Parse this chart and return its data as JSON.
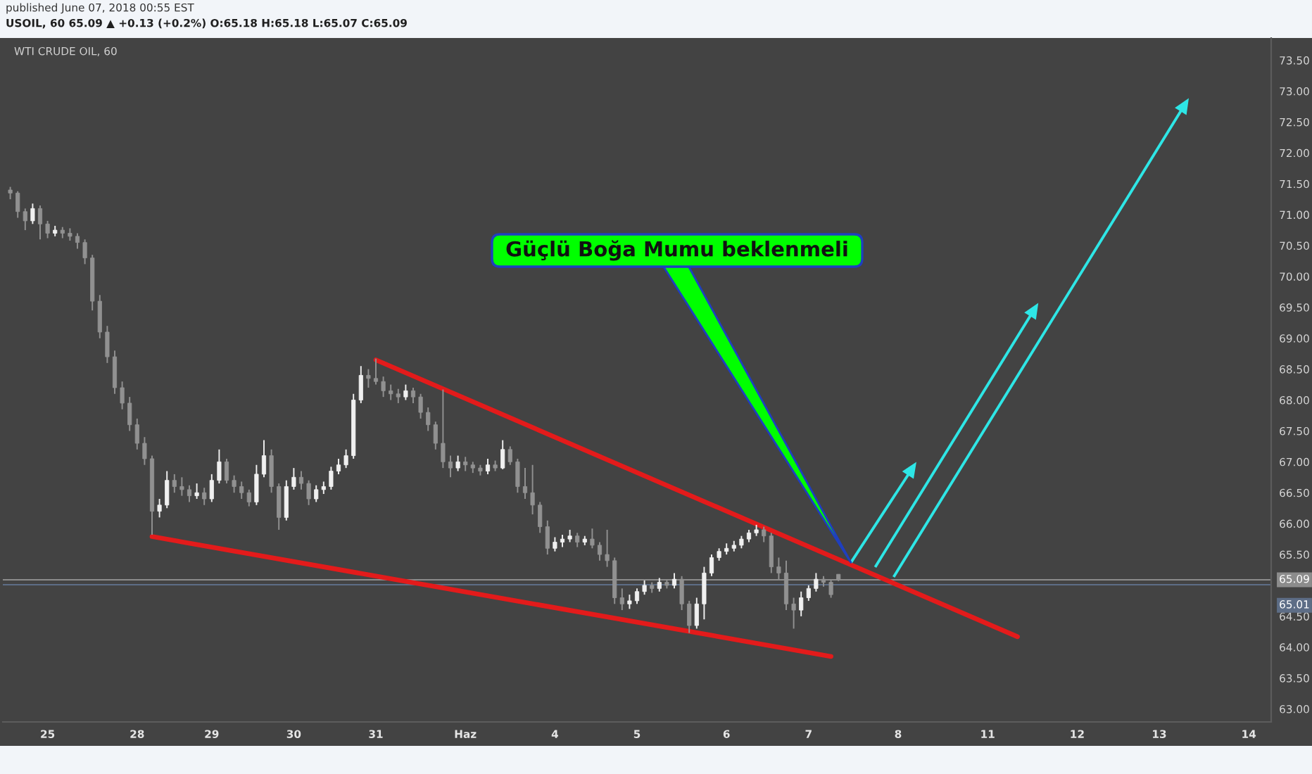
{
  "chart_data": {
    "type": "candlestick",
    "title": "WTI CRUDE OIL, 60",
    "subtitle": "USOIL, 60 65.09 ▲ +0.13 (+0.2%) O:65.18 H:65.18 L:65.07 C:65.09",
    "annotations": [
      "published June 07, 2018 00:55 EST",
      "Güçlü Boğa Mumu beklenmeli"
    ],
    "categories": [
      null,
      null,
      null,
      null,
      null,
      "25",
      null,
      null,
      null,
      null,
      null,
      null,
      null,
      null,
      null,
      null,
      null,
      "28",
      null,
      null,
      null,
      null,
      null,
      null,
      null,
      null,
      null,
      "29",
      null,
      null,
      null,
      null,
      null,
      null,
      null,
      null,
      null,
      null,
      "30",
      null,
      null,
      null,
      null,
      null,
      null,
      null,
      null,
      null,
      null,
      "31",
      null,
      null,
      null,
      null,
      null,
      null,
      null,
      null,
      null,
      null,
      null,
      "Haz",
      null,
      null,
      null,
      null,
      null,
      null,
      null,
      null,
      null,
      null,
      null,
      "4",
      null,
      null,
      null,
      null,
      null,
      null,
      null,
      null,
      null,
      null,
      "5",
      null,
      null,
      null,
      null,
      null,
      null,
      null,
      null,
      null,
      null,
      null,
      "6",
      null,
      null,
      null,
      null,
      null,
      null,
      null,
      null,
      null,
      null,
      "7",
      null,
      null,
      null,
      null,
      null,
      null,
      null,
      null,
      null,
      null,
      null,
      "8",
      null,
      null,
      null,
      null,
      null,
      null,
      null,
      null,
      null,
      null,
      null,
      "11",
      null,
      null,
      null,
      null,
      null,
      null,
      null,
      null,
      null,
      null,
      null,
      "12",
      null,
      null,
      null,
      null,
      null,
      null,
      null,
      null,
      null,
      null,
      "13",
      null,
      null,
      null,
      null,
      null,
      null,
      null,
      null,
      null,
      null,
      null,
      "14",
      null,
      null
    ],
    "ohlc": [
      [
        71.4,
        71.45,
        71.25,
        71.35
      ],
      [
        71.35,
        71.38,
        70.95,
        71.05
      ],
      [
        71.05,
        71.1,
        70.75,
        70.9
      ],
      [
        70.9,
        71.18,
        70.85,
        71.1
      ],
      [
        71.1,
        71.15,
        70.6,
        70.85
      ],
      [
        70.85,
        70.9,
        70.62,
        70.7
      ],
      [
        70.7,
        70.82,
        70.65,
        70.75
      ],
      [
        70.75,
        70.8,
        70.62,
        70.7
      ],
      [
        70.7,
        70.78,
        70.58,
        70.65
      ],
      [
        70.65,
        70.7,
        70.45,
        70.55
      ],
      [
        70.55,
        70.6,
        70.2,
        70.3
      ],
      [
        70.3,
        70.35,
        69.45,
        69.6
      ],
      [
        69.6,
        69.7,
        69.0,
        69.1
      ],
      [
        69.1,
        69.2,
        68.6,
        68.7
      ],
      [
        68.7,
        68.8,
        68.1,
        68.2
      ],
      [
        68.2,
        68.3,
        67.85,
        67.95
      ],
      [
        67.95,
        68.05,
        67.5,
        67.6
      ],
      [
        67.6,
        67.7,
        67.2,
        67.3
      ],
      [
        67.3,
        67.4,
        66.95,
        67.05
      ],
      [
        67.05,
        67.1,
        65.82,
        66.2
      ],
      [
        66.2,
        66.4,
        66.1,
        66.3
      ],
      [
        66.3,
        66.85,
        66.25,
        66.7
      ],
      [
        66.7,
        66.8,
        66.5,
        66.6
      ],
      [
        66.6,
        66.75,
        66.45,
        66.55
      ],
      [
        66.55,
        66.62,
        66.35,
        66.45
      ],
      [
        66.45,
        66.65,
        66.4,
        66.5
      ],
      [
        66.5,
        66.58,
        66.3,
        66.4
      ],
      [
        66.4,
        66.8,
        66.35,
        66.7
      ],
      [
        66.7,
        67.2,
        66.65,
        67.0
      ],
      [
        67.0,
        67.05,
        66.65,
        66.7
      ],
      [
        66.7,
        66.78,
        66.5,
        66.6
      ],
      [
        66.6,
        66.68,
        66.4,
        66.5
      ],
      [
        66.5,
        66.55,
        66.28,
        66.35
      ],
      [
        66.35,
        66.95,
        66.3,
        66.8
      ],
      [
        66.8,
        67.35,
        66.75,
        67.1
      ],
      [
        67.1,
        67.2,
        66.5,
        66.6
      ],
      [
        66.6,
        66.65,
        65.9,
        66.1
      ],
      [
        66.1,
        66.7,
        66.05,
        66.6
      ],
      [
        66.6,
        66.9,
        66.55,
        66.75
      ],
      [
        66.75,
        66.85,
        66.55,
        66.65
      ],
      [
        66.65,
        66.7,
        66.3,
        66.4
      ],
      [
        66.4,
        66.62,
        66.35,
        66.55
      ],
      [
        66.55,
        66.68,
        66.48,
        66.6
      ],
      [
        66.6,
        66.92,
        66.55,
        66.85
      ],
      [
        66.85,
        67.05,
        66.8,
        66.95
      ],
      [
        66.95,
        67.2,
        66.9,
        67.1
      ],
      [
        67.1,
        68.1,
        67.05,
        68.0
      ],
      [
        68.0,
        68.55,
        67.95,
        68.4
      ],
      [
        68.4,
        68.5,
        68.2,
        68.35
      ],
      [
        68.35,
        68.67,
        68.25,
        68.3
      ],
      [
        68.3,
        68.38,
        68.05,
        68.15
      ],
      [
        68.15,
        68.25,
        68.0,
        68.1
      ],
      [
        68.1,
        68.18,
        67.95,
        68.05
      ],
      [
        68.05,
        68.25,
        68.0,
        68.15
      ],
      [
        68.15,
        68.2,
        67.95,
        68.05
      ],
      [
        68.05,
        68.1,
        67.7,
        67.8
      ],
      [
        67.8,
        67.88,
        67.5,
        67.6
      ],
      [
        67.6,
        67.65,
        67.2,
        67.3
      ],
      [
        67.3,
        68.17,
        66.9,
        67.0
      ],
      [
        67.0,
        67.1,
        66.75,
        66.9
      ],
      [
        66.9,
        67.1,
        66.85,
        67.0
      ],
      [
        67.0,
        67.08,
        66.85,
        66.95
      ],
      [
        66.95,
        67.0,
        66.82,
        66.9
      ],
      [
        66.9,
        66.95,
        66.78,
        66.85
      ],
      [
        66.85,
        67.05,
        66.8,
        66.95
      ],
      [
        66.95,
        67.02,
        66.85,
        66.9
      ],
      [
        66.9,
        67.35,
        66.88,
        67.2
      ],
      [
        67.2,
        67.25,
        66.95,
        67.0
      ],
      [
        67.0,
        67.05,
        66.5,
        66.6
      ],
      [
        66.6,
        66.9,
        66.4,
        66.5
      ],
      [
        66.5,
        66.95,
        66.15,
        66.3
      ],
      [
        66.3,
        66.35,
        65.85,
        65.95
      ],
      [
        65.95,
        66.05,
        65.5,
        65.6
      ],
      [
        65.6,
        65.78,
        65.55,
        65.7
      ],
      [
        65.7,
        65.82,
        65.62,
        65.75
      ],
      [
        65.75,
        65.9,
        65.7,
        65.8
      ],
      [
        65.8,
        65.85,
        65.62,
        65.7
      ],
      [
        65.7,
        65.8,
        65.65,
        65.75
      ],
      [
        65.75,
        65.92,
        65.6,
        65.65
      ],
      [
        65.65,
        65.7,
        65.4,
        65.5
      ],
      [
        65.5,
        65.9,
        65.3,
        65.4
      ],
      [
        65.4,
        65.45,
        64.7,
        64.8
      ],
      [
        64.8,
        64.95,
        64.6,
        64.7
      ],
      [
        64.7,
        64.85,
        64.62,
        64.75
      ],
      [
        64.75,
        64.95,
        64.7,
        64.9
      ],
      [
        64.9,
        65.08,
        64.85,
        65.0
      ],
      [
        65.0,
        65.05,
        64.88,
        64.95
      ],
      [
        64.95,
        65.12,
        64.9,
        65.05
      ],
      [
        65.05,
        65.1,
        64.95,
        65.0
      ],
      [
        65.0,
        65.2,
        64.95,
        65.1
      ],
      [
        65.1,
        65.15,
        64.6,
        64.7
      ],
      [
        64.7,
        64.75,
        64.23,
        64.35
      ],
      [
        64.35,
        64.8,
        64.3,
        64.7
      ],
      [
        64.7,
        65.3,
        64.45,
        65.2
      ],
      [
        65.2,
        65.5,
        65.15,
        65.45
      ],
      [
        65.45,
        65.6,
        65.4,
        65.55
      ],
      [
        65.55,
        65.68,
        65.5,
        65.6
      ],
      [
        65.6,
        65.72,
        65.55,
        65.65
      ],
      [
        65.65,
        65.8,
        65.6,
        65.75
      ],
      [
        65.75,
        65.9,
        65.7,
        65.85
      ],
      [
        65.85,
        65.98,
        65.8,
        65.9
      ],
      [
        65.9,
        65.95,
        65.7,
        65.8
      ],
      [
        65.8,
        65.85,
        65.2,
        65.3
      ],
      [
        65.3,
        65.45,
        65.1,
        65.2
      ],
      [
        65.2,
        65.4,
        64.6,
        64.7
      ],
      [
        64.7,
        64.8,
        64.3,
        64.6
      ],
      [
        64.6,
        64.9,
        64.5,
        64.8
      ],
      [
        64.8,
        65.0,
        64.75,
        64.95
      ],
      [
        64.95,
        65.2,
        64.9,
        65.1
      ],
      [
        65.1,
        65.15,
        64.98,
        65.05
      ],
      [
        65.05,
        65.08,
        64.8,
        64.85
      ],
      [
        65.18,
        65.18,
        65.07,
        65.09
      ],
      null,
      null,
      null,
      null,
      null,
      null,
      null,
      null,
      null,
      null,
      null,
      null,
      null,
      null,
      null,
      null,
      null,
      null,
      null,
      null,
      null,
      null,
      null,
      null,
      null,
      null,
      null,
      null,
      null,
      null,
      null,
      null,
      null,
      null,
      null,
      null,
      null,
      null,
      null,
      null,
      null,
      null,
      null,
      null,
      null,
      null,
      null,
      null,
      null,
      null,
      null,
      null,
      null,
      null,
      null,
      null,
      null
    ],
    "colors": [
      "#919191",
      "#919191",
      "#919191",
      "#f0f0f0",
      "#919191",
      "#919191",
      "#f0f0f0",
      "#919191",
      "#919191",
      "#919191",
      "#919191",
      "#919191",
      "#919191",
      "#919191",
      "#919191",
      "#919191",
      "#919191",
      "#919191",
      "#919191",
      "#919191",
      "#f0f0f0",
      "#f0f0f0",
      "#919191",
      "#919191",
      "#919191",
      "#f0f0f0",
      "#919191",
      "#f0f0f0",
      "#f0f0f0",
      "#919191",
      "#919191",
      "#919191",
      "#919191",
      "#f0f0f0",
      "#f0f0f0",
      "#919191",
      "#919191",
      "#f0f0f0",
      "#f0f0f0",
      "#919191",
      "#919191",
      "#f0f0f0",
      "#f0f0f0",
      "#f0f0f0",
      "#f0f0f0",
      "#f0f0f0",
      "#f0f0f0",
      "#f0f0f0",
      "#919191",
      "#919191",
      "#919191",
      "#919191",
      "#919191",
      "#f0f0f0",
      "#919191",
      "#919191",
      "#919191",
      "#919191",
      "#919191",
      "#919191",
      "#f0f0f0",
      "#919191",
      "#919191",
      "#919191",
      "#f0f0f0",
      "#919191",
      "#f0f0f0",
      "#919191",
      "#919191",
      "#919191",
      "#919191",
      "#919191",
      "#919191",
      "#f0f0f0",
      "#f0f0f0",
      "#f0f0f0",
      "#919191",
      "#f0f0f0",
      "#919191",
      "#919191",
      "#919191",
      "#919191",
      "#919191",
      "#f0f0f0",
      "#f0f0f0",
      "#f0f0f0",
      "#919191",
      "#f0f0f0",
      "#919191",
      "#f0f0f0",
      "#919191",
      "#919191",
      "#f0f0f0",
      "#f0f0f0",
      "#f0f0f0",
      "#f0f0f0",
      "#f0f0f0",
      "#f0f0f0",
      "#f0f0f0",
      "#f0f0f0",
      "#f0f0f0",
      "#919191",
      "#919191",
      "#919191",
      "#919191",
      "#919191",
      "#f0f0f0",
      "#f0f0f0",
      "#f0f0f0",
      "#919191",
      "#919191",
      "#919191",
      null,
      null,
      null,
      null,
      null,
      null,
      null,
      null,
      null,
      null,
      null,
      null,
      null,
      null,
      null,
      null,
      null,
      null,
      null,
      null,
      null,
      null,
      null,
      null,
      null,
      null,
      null,
      null,
      null,
      null,
      null,
      null,
      null,
      null,
      null,
      null,
      null,
      null,
      null,
      null,
      null,
      null,
      null,
      null,
      null,
      null,
      null,
      null,
      null,
      null,
      null,
      null,
      null,
      null,
      null,
      null,
      null
    ],
    "series": [
      {
        "type": "line",
        "color": "#e31b1b",
        "values": [
          null,
          null,
          null,
          null,
          null,
          null,
          null,
          null,
          null,
          null,
          null,
          null,
          null,
          null,
          null,
          null,
          null,
          null,
          null,
          null,
          null,
          null,
          null,
          null,
          null,
          null,
          null,
          null,
          null,
          null,
          null,
          null,
          null,
          null,
          null,
          null,
          null,
          null,
          null,
          null,
          null,
          null,
          null,
          null,
          null,
          null,
          null,
          null,
          null,
          68.65,
          null,
          null,
          null,
          null,
          null,
          null,
          null,
          null,
          null,
          null,
          null,
          null,
          null,
          null,
          null,
          null,
          null,
          null,
          null,
          null,
          null,
          null,
          null,
          null,
          null,
          null,
          null,
          null,
          null,
          null,
          null,
          null,
          null,
          null,
          null,
          null,
          null,
          null,
          null,
          null,
          null,
          null,
          null,
          null,
          null,
          null,
          null,
          null,
          null,
          null,
          null,
          null,
          null,
          null,
          null,
          null,
          null,
          null,
          null,
          null,
          null,
          null,
          null,
          null,
          null,
          null,
          null,
          null,
          null,
          null,
          null,
          null,
          null,
          null,
          null,
          null,
          null,
          null,
          null,
          null,
          null,
          null,
          null,
          null,
          null,
          64.17,
          null,
          null,
          null,
          null,
          null,
          null,
          null,
          null,
          null,
          null,
          null,
          null,
          null,
          null,
          null,
          null,
          null,
          null,
          null,
          null,
          null,
          null,
          null,
          null,
          null,
          null,
          null,
          null,
          null,
          null,
          null,
          null,
          null
        ]
      },
      {
        "type": "line",
        "color": "#e31b1b",
        "values": [
          null,
          null,
          null,
          null,
          null,
          null,
          null,
          null,
          null,
          null,
          null,
          null,
          null,
          null,
          null,
          null,
          null,
          null,
          null,
          65.79,
          null,
          null,
          null,
          null,
          null,
          null,
          null,
          null,
          null,
          null,
          null,
          null,
          null,
          null,
          null,
          null,
          null,
          null,
          null,
          null,
          null,
          null,
          null,
          null,
          null,
          null,
          null,
          null,
          null,
          null,
          null,
          null,
          null,
          null,
          null,
          null,
          null,
          null,
          null,
          null,
          null,
          null,
          null,
          null,
          null,
          null,
          null,
          null,
          null,
          null,
          null,
          null,
          null,
          null,
          null,
          null,
          null,
          null,
          null,
          null,
          null,
          null,
          null,
          null,
          null,
          null,
          null,
          null,
          null,
          null,
          null,
          null,
          null,
          null,
          null,
          null,
          null,
          null,
          null,
          null,
          null,
          null,
          null,
          null,
          null,
          null,
          null,
          null,
          null,
          null,
          63.85,
          null,
          null,
          null,
          null,
          null,
          null,
          null,
          null,
          null,
          null,
          null,
          null,
          null,
          null,
          null,
          null,
          null,
          null,
          null,
          null,
          null,
          null,
          null,
          null,
          null,
          null,
          null,
          null,
          null,
          null,
          null,
          null,
          null,
          null,
          null,
          null,
          null,
          null,
          null,
          null,
          null,
          null,
          null,
          null,
          null,
          null,
          null,
          null,
          null,
          null,
          null,
          null,
          null,
          null,
          null,
          null,
          null,
          null
        ]
      }
    ],
    "ylim": [
      62.79,
      73.86
    ],
    "yticks": [
      {
        "value": 63,
        "label": "63.00"
      },
      {
        "value": 63.5,
        "label": "63.50"
      },
      {
        "value": 64,
        "label": "64.00"
      },
      {
        "value": 64.5,
        "label": "64.50"
      },
      {
        "value": 65.5,
        "label": "65.50"
      },
      {
        "value": 66,
        "label": "66.00"
      },
      {
        "value": 66.5,
        "label": "66.50"
      },
      {
        "value": 67,
        "label": "67.00"
      },
      {
        "value": 67.5,
        "label": "67.50"
      },
      {
        "value": 68,
        "label": "68.00"
      },
      {
        "value": 68.5,
        "label": "68.50"
      },
      {
        "value": 69,
        "label": "69.00"
      },
      {
        "value": 69.5,
        "label": "69.50"
      },
      {
        "value": 70,
        "label": "70.00"
      },
      {
        "value": 70.5,
        "label": "70.50"
      },
      {
        "value": 71,
        "label": "71.00"
      },
      {
        "value": 71.5,
        "label": "71.50"
      },
      {
        "value": 72,
        "label": "72.00"
      },
      {
        "value": 72.5,
        "label": "72.50"
      },
      {
        "value": 73,
        "label": "73.00"
      },
      {
        "value": 73.5,
        "label": "73.50"
      }
    ],
    "ref_lines": [
      {
        "axis": "y",
        "value": 65.09,
        "label": "65.09",
        "color": "#8c8c8c"
      },
      {
        "axis": "y",
        "value": 65.01,
        "label": "65.01",
        "color": "#5d6d86"
      }
    ]
  }
}
